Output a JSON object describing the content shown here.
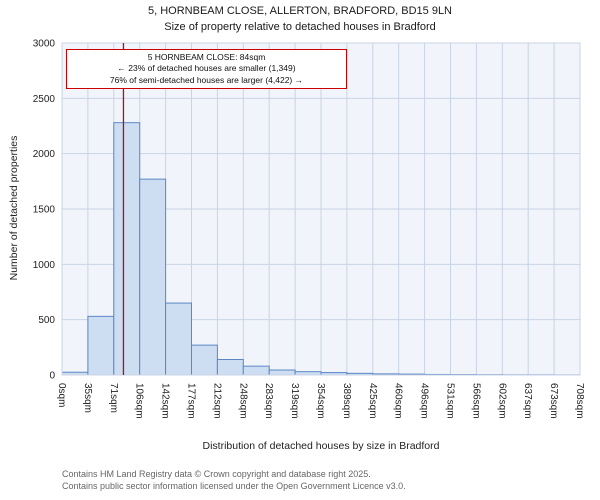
{
  "chart_data": {
    "type": "bar",
    "title": "5, HORNBEAM CLOSE, ALLERTON, BRADFORD, BD15 9LN",
    "subtitle": "Size of property relative to detached houses in Bradford",
    "xlabel": "Distribution of detached houses by size in Bradford",
    "ylabel": "Number of detached properties",
    "x_tick_labels": [
      "0sqm",
      "35sqm",
      "71sqm",
      "106sqm",
      "142sqm",
      "177sqm",
      "212sqm",
      "248sqm",
      "283sqm",
      "319sqm",
      "354sqm",
      "389sqm",
      "425sqm",
      "460sqm",
      "496sqm",
      "531sqm",
      "566sqm",
      "602sqm",
      "637sqm",
      "673sqm",
      "708sqm"
    ],
    "bin_edges_sqm": [
      0,
      35,
      71,
      106,
      142,
      177,
      212,
      248,
      283,
      319,
      354,
      389,
      425,
      460,
      496,
      531,
      566,
      602,
      637,
      673,
      708
    ],
    "values": [
      25,
      530,
      2280,
      1770,
      650,
      270,
      140,
      80,
      45,
      30,
      22,
      15,
      10,
      8,
      5,
      4,
      3,
      2,
      2,
      1
    ],
    "xlim": [
      0,
      708
    ],
    "ylim": [
      0,
      3000
    ],
    "y_ticks": [
      0,
      500,
      1000,
      1500,
      2000,
      2500,
      3000
    ],
    "grid": true,
    "legend": false,
    "marker": {
      "sqm": 84
    },
    "annotation": {
      "line1": "5 HORNBEAM CLOSE: 84sqm",
      "line2": "← 23% of detached houses are smaller (1,349)",
      "line3": "76% of semi-detached houses are larger (4,422) →"
    },
    "colors": {
      "plot_bg": "#f1f5fb",
      "grid": "#c9d3e6",
      "bar_fill": "#cdddf2",
      "bar_stroke": "#5b87c5",
      "marker_line": "#aa1111",
      "annotation_border": "#cc0000"
    }
  },
  "footer": {
    "line1": "Contains HM Land Registry data © Crown copyright and database right 2025.",
    "line2": "Contains public sector information licensed under the Open Government Licence v3.0."
  }
}
